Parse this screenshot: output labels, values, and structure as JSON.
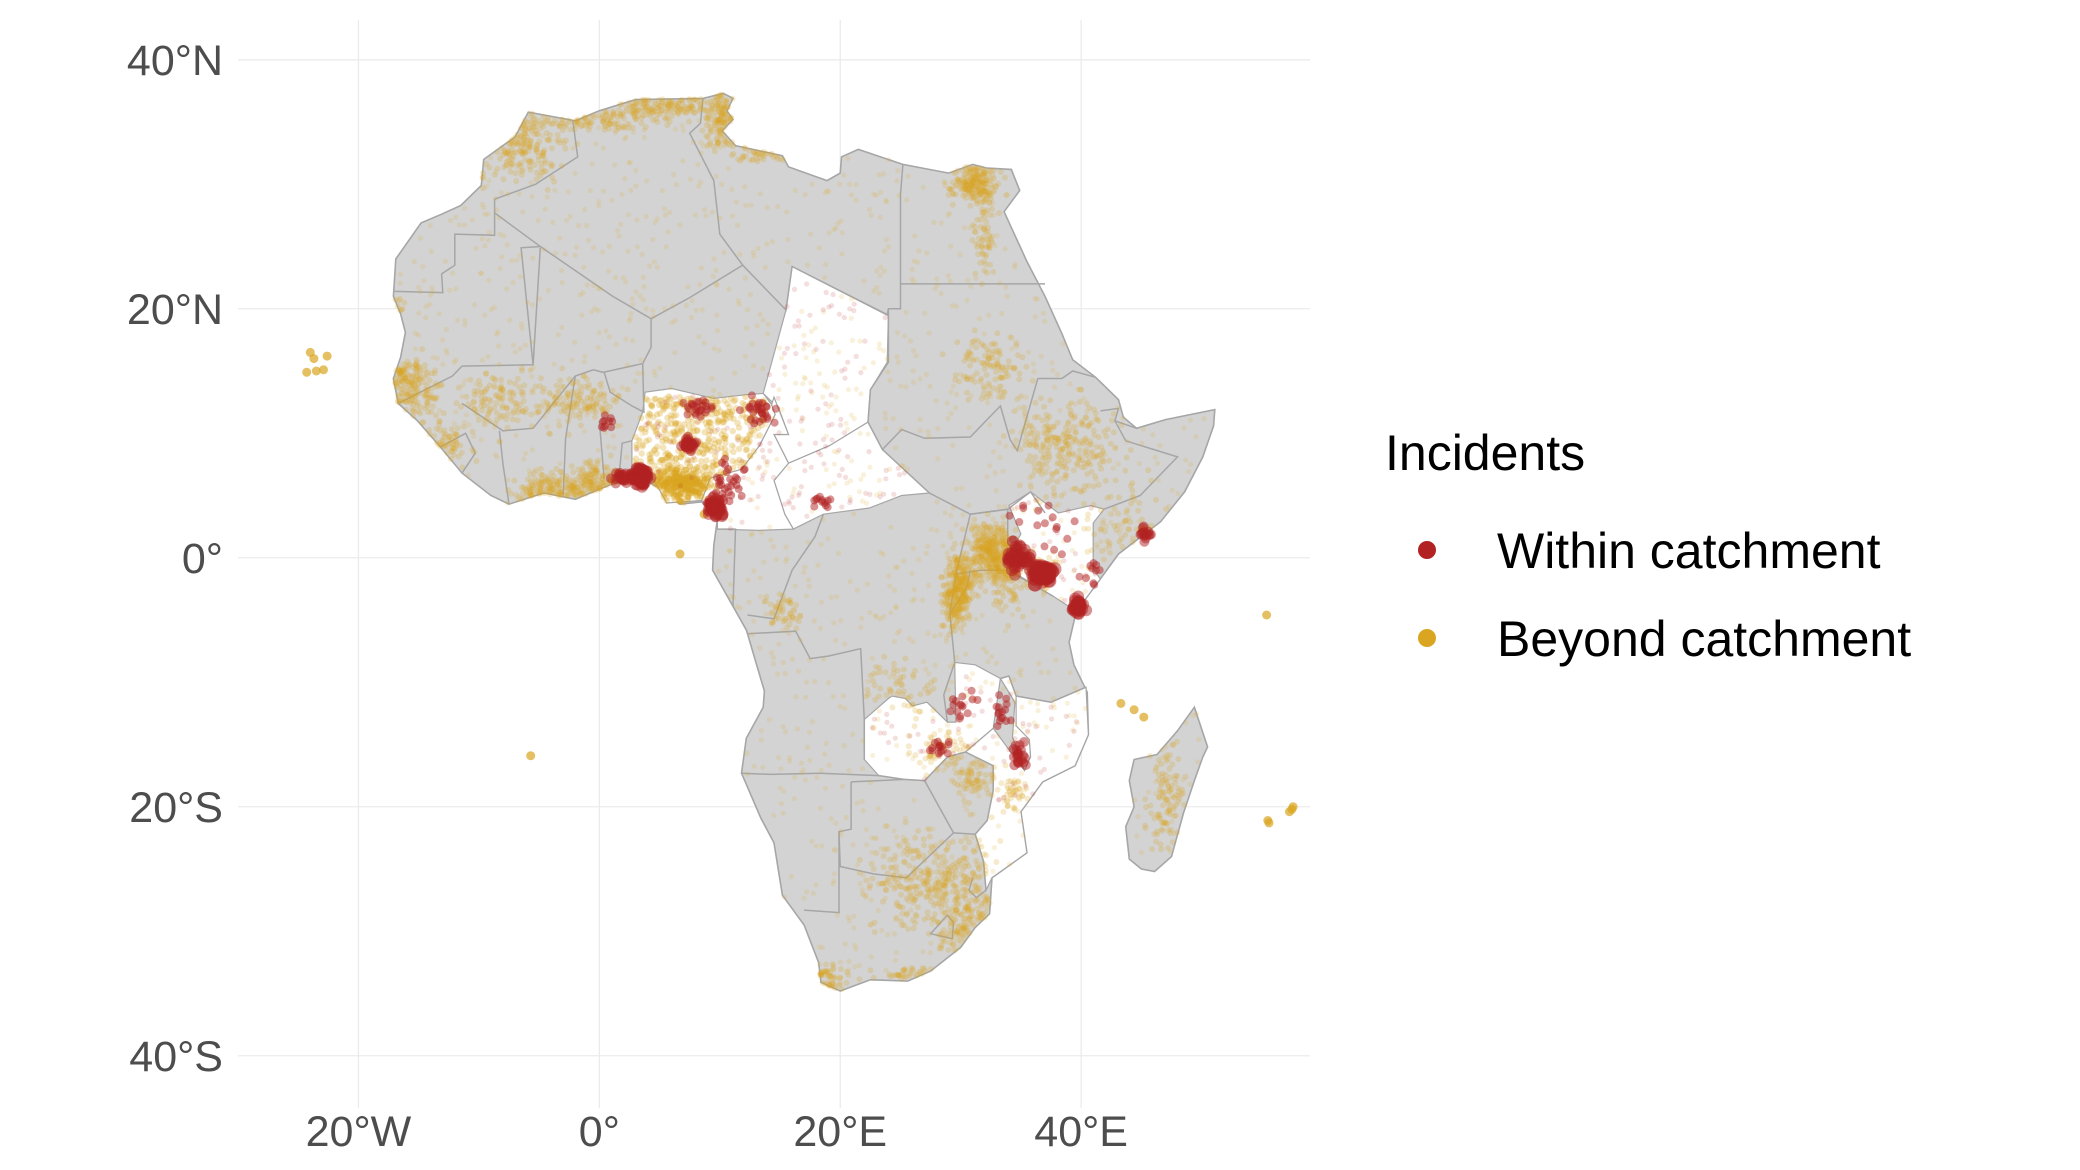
{
  "map": {
    "x_axis": {
      "ticks": [
        {
          "lon": -20,
          "label": "20°W"
        },
        {
          "lon": 0,
          "label": "0°"
        },
        {
          "lon": 20,
          "label": "20°E"
        },
        {
          "lon": 40,
          "label": "40°E"
        }
      ]
    },
    "y_axis": {
      "ticks": [
        {
          "lat": 40,
          "label": "40°N"
        },
        {
          "lat": 20,
          "label": "20°N"
        },
        {
          "lat": 0,
          "label": "0°"
        },
        {
          "lat": -20,
          "label": "20°S"
        },
        {
          "lat": -40,
          "label": "40°S"
        }
      ]
    },
    "lon_range": [
      -30,
      59
    ],
    "lat_range": [
      -45,
      44
    ],
    "colors": {
      "land": "#d3d3d3",
      "catchment_land": "#ffffff",
      "border": "#a6a6a6",
      "grid": "#ebebeb",
      "within": "#b22222",
      "beyond": "#daa520"
    },
    "catchment_countries": [
      "Nigeria",
      "Chad",
      "Central African Republic",
      "Cameroon",
      "Kenya",
      "Zambia",
      "Malawi",
      "Mozambique"
    ]
  },
  "legend": {
    "title": "Incidents",
    "items": [
      {
        "label": "Within catchment",
        "color": "#b22222"
      },
      {
        "label": "Beyond catchment",
        "color": "#daa520"
      }
    ]
  }
}
